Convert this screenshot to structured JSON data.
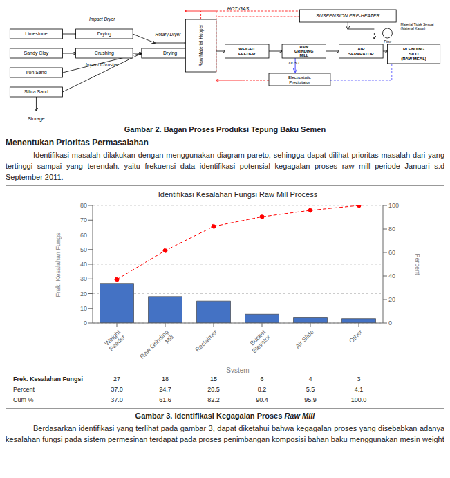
{
  "chart_data": {
    "type": "bar",
    "title": "Identifikasi Kesalahan Fungsi Raw Mill Process",
    "categories": [
      "Weight\nFeeder",
      "Raw Grinding\nMill",
      "Reclaimer",
      "Bucket\nElevator",
      "Air Slide",
      "Other"
    ],
    "xlabel": "System",
    "ylabel": "Frek. Kesalahan Fungsi",
    "y2label": "Percent",
    "ylim": [
      0,
      80
    ],
    "yticks": [
      0,
      10,
      20,
      30,
      40,
      50,
      60,
      70,
      80
    ],
    "y2lim": [
      0,
      100
    ],
    "y2ticks": [
      0,
      20,
      40,
      60,
      80,
      100
    ],
    "grid": true,
    "series": [
      {
        "type": "bar",
        "color": "#4472C4",
        "values": [
          27,
          18,
          15,
          6,
          4,
          3
        ]
      },
      {
        "type": "line",
        "axis": "y2",
        "color": "#FF0000",
        "marker": "circle",
        "line_style": "dashed",
        "values": [
          37.0,
          61.6,
          82.2,
          90.4,
          95.9,
          100.0
        ]
      }
    ],
    "table": [
      {
        "label": "Frek. Kesalahan Fungsi",
        "values": [
          27,
          18,
          15,
          6,
          4,
          3
        ]
      },
      {
        "label": "Percent",
        "values": [
          37.0,
          24.7,
          20.5,
          8.2,
          5.5,
          4.1
        ],
        "value_labels": [
          "37.0",
          "24.7",
          "20.5",
          "8.2",
          "5.5",
          "4.1"
        ]
      },
      {
        "label": "Cum %",
        "values": [
          37.0,
          61.6,
          82.2,
          90.4,
          95.9,
          100.0
        ],
        "value_labels": [
          "37.0",
          "61.6",
          "82.2",
          "90.4",
          "95.9",
          "100.0"
        ]
      }
    ],
    "annotations": [
      "Limestone",
      "Sandy Clay",
      "Iron Sand",
      "Silica Sand",
      "Storage",
      "Impact Dryer",
      "Drying",
      "Impact Chrusher",
      "Crushing",
      "Rotary Dryer",
      "Drying",
      "Raw Material Hopper",
      "HOT GAS",
      "SUSPENSION PRE-HEATER",
      "Material Tidak Sesuai\n(Material Kasar)",
      "WEIGHT\nFEEDER",
      "RAW\nGRINDING\nMILL",
      "DUST",
      "Electrostatic\nPrecipitator",
      "AIR\nSEPARATOR",
      "Fine",
      "BLENDING\nSILO\n(RAW MEAL)",
      "Gambar 2. Bagan Proses Produksi Tepung Baku Semen",
      "Menentukan Prioritas Permasalahan",
      "Identifikasi masalah dilakukan dengan menggunakan diagram pareto, sehingga dapat dilihat prioritas masalah dari yang tertinggi sampai yang terendah. yaitu frekuensi data identifikasi potensial kegagalan proses raw mill periode Januari s.d September 2011.",
      "Gambar 3. Identifikasi Kegagalan Proses",
      "Raw Mill",
      "Berdasarkan identifikasi yang terlihat pada gambar 3, dapat diketahui bahwa kegagalan proses yang disebabkan adanya kesalahan fungsi pada sistem permesinan terdapat pada proses penimbangan komposisi bahan baku menggunakan mesin weight"
    ]
  }
}
